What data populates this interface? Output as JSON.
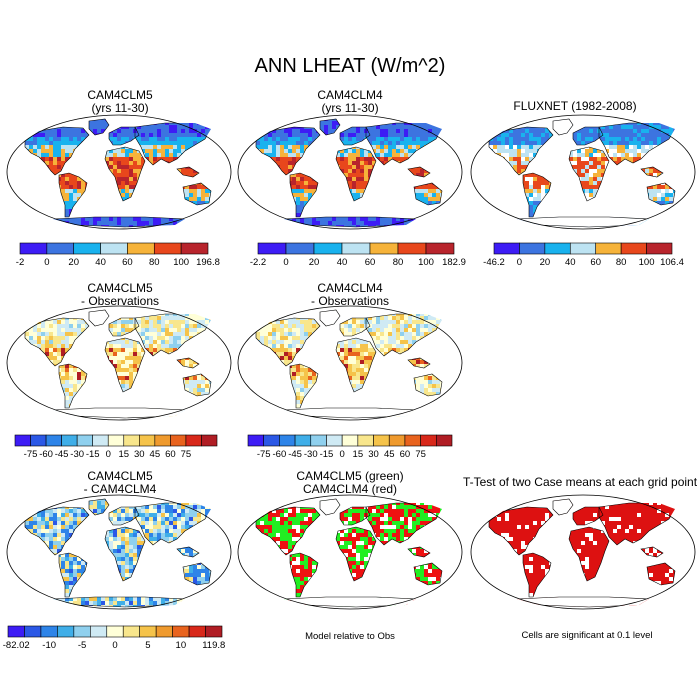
{
  "title": "ANN LHEAT (W/m^2)",
  "panels": [
    {
      "id": "p1",
      "title": [
        "CAM4CLM5",
        "(yrs 11-30)"
      ],
      "style": "model",
      "greenland": true,
      "antarctica": true,
      "seed": 11
    },
    {
      "id": "p2",
      "title": [
        "CAM4CLM4",
        "(yrs 11-30)"
      ],
      "style": "model",
      "greenland": true,
      "antarctica": true,
      "seed": 23
    },
    {
      "id": "p3",
      "title": [
        "FLUXNET (1982-2008)"
      ],
      "style": "fluxnet",
      "greenland": false,
      "antarctica": false,
      "seed": 37
    },
    {
      "id": "p4",
      "title": [
        "CAM4CLM5",
        "- Observations"
      ],
      "style": "diffobs",
      "greenland": false,
      "antarctica": false,
      "seed": 41
    },
    {
      "id": "p5",
      "title": [
        "CAM4CLM4",
        "- Observations"
      ],
      "style": "diffobs",
      "greenland": false,
      "antarctica": false,
      "seed": 53
    },
    {
      "id": "p6",
      "title": [
        "CAM4CLM5",
        "- CAM4CLM4"
      ],
      "style": "diffmodel",
      "greenland": true,
      "antarctica": true,
      "seed": 61
    },
    {
      "id": "p7",
      "title": [
        "CAM4CLM5 (green)",
        "CAM4CLM4 (red)"
      ],
      "style": "redgreen",
      "greenland": false,
      "antarctica": false,
      "seed": 71
    },
    {
      "id": "p8",
      "title": [
        "T-Test of two Case means at each grid point"
      ],
      "style": "ttest",
      "greenland": false,
      "antarctica": false,
      "seed": 83
    }
  ],
  "colorbars": [
    {
      "id": "cb1",
      "colors": [
        "#3d1cf5",
        "#3c74e0",
        "#19b2ee",
        "#bde3f2",
        "#f6b33a",
        "#e8471c",
        "#b8242c"
      ],
      "labels": [
        "-2",
        "0",
        "20",
        "40",
        "60",
        "80",
        "100",
        "196.8"
      ],
      "at": "edges"
    },
    {
      "id": "cb2",
      "colors": [
        "#3d1cf5",
        "#3c74e0",
        "#19b2ee",
        "#bde3f2",
        "#f6b33a",
        "#e8471c",
        "#b8242c"
      ],
      "labels": [
        "-2.2",
        "0",
        "20",
        "40",
        "60",
        "80",
        "100",
        "182.9"
      ],
      "at": "edges"
    },
    {
      "id": "cb3",
      "colors": [
        "#3d1cf5",
        "#3c74e0",
        "#19b2ee",
        "#bde3f2",
        "#f6b33a",
        "#e8471c",
        "#b8242c"
      ],
      "labels": [
        "-46.2",
        "0",
        "20",
        "40",
        "60",
        "80",
        "100",
        "106.4"
      ],
      "at": "edges"
    },
    {
      "id": "cb4",
      "colors": [
        "#3d1cf5",
        "#2b58e6",
        "#2e84e8",
        "#3faee8",
        "#8fd0ee",
        "#cfeaf4",
        "#ffffd8",
        "#f8e68c",
        "#f5c34a",
        "#ef9a2e",
        "#e8631e",
        "#d8281a",
        "#b01d24"
      ],
      "labels": [
        "-75",
        "-60",
        "-45",
        "-30",
        "-15",
        "0",
        "15",
        "30",
        "45",
        "60",
        "75"
      ],
      "at": "inner"
    },
    {
      "id": "cb5",
      "colors": [
        "#3d1cf5",
        "#2b58e6",
        "#2e84e8",
        "#3faee8",
        "#8fd0ee",
        "#cfeaf4",
        "#ffffd8",
        "#f8e68c",
        "#f5c34a",
        "#ef9a2e",
        "#e8631e",
        "#d8281a",
        "#b01d24"
      ],
      "labels": [
        "-75",
        "-60",
        "-45",
        "-30",
        "-15",
        "0",
        "15",
        "30",
        "45",
        "60",
        "75"
      ],
      "at": "inner"
    },
    {
      "id": "cb6",
      "colors": [
        "#3d1cf5",
        "#2b58e6",
        "#2e84e8",
        "#3faee8",
        "#8fd0ee",
        "#cfeaf4",
        "#ffffd8",
        "#f8e68c",
        "#f5c34a",
        "#ef9a2e",
        "#e8631e",
        "#d8281a",
        "#b01d24"
      ],
      "labels": [
        "-82.02",
        "",
        "-10",
        "",
        "-5",
        "",
        "0",
        "",
        "5",
        "",
        "10",
        "",
        "119.8"
      ],
      "at": "all"
    }
  ],
  "notes": {
    "p7": "Model relative to Obs",
    "p8": "Cells are significant at 0.1 level"
  },
  "chart_data": {
    "type": "heatmap",
    "title": "ANN LHEAT (W/m^2)",
    "panels": [
      {
        "name": "CAM4CLM5 (yrs 11-30)",
        "levels": [
          0,
          20,
          40,
          60,
          80,
          100
        ],
        "range": [
          -2,
          196.8
        ]
      },
      {
        "name": "CAM4CLM4 (yrs 11-30)",
        "levels": [
          0,
          20,
          40,
          60,
          80,
          100
        ],
        "range": [
          -2.2,
          182.9
        ]
      },
      {
        "name": "FLUXNET (1982-2008)",
        "levels": [
          0,
          20,
          40,
          60,
          80,
          100
        ],
        "range": [
          -46.2,
          106.4
        ]
      },
      {
        "name": "CAM4CLM5 - Observations",
        "levels": [
          -75,
          -60,
          -45,
          -30,
          -15,
          0,
          15,
          30,
          45,
          60,
          75
        ]
      },
      {
        "name": "CAM4CLM4 - Observations",
        "levels": [
          -75,
          -60,
          -45,
          -30,
          -15,
          0,
          15,
          30,
          45,
          60,
          75
        ]
      },
      {
        "name": "CAM4CLM5 - CAM4CLM4",
        "levels": [
          -10,
          -5,
          0,
          5,
          10
        ],
        "range": [
          -82.02,
          119.8
        ]
      },
      {
        "name": "CAM4CLM5 (green) CAM4CLM4 (red)",
        "note": "Model relative to Obs"
      },
      {
        "name": "T-Test of two Case means at each grid point",
        "note": "Cells are significant at 0.1 level"
      }
    ]
  }
}
